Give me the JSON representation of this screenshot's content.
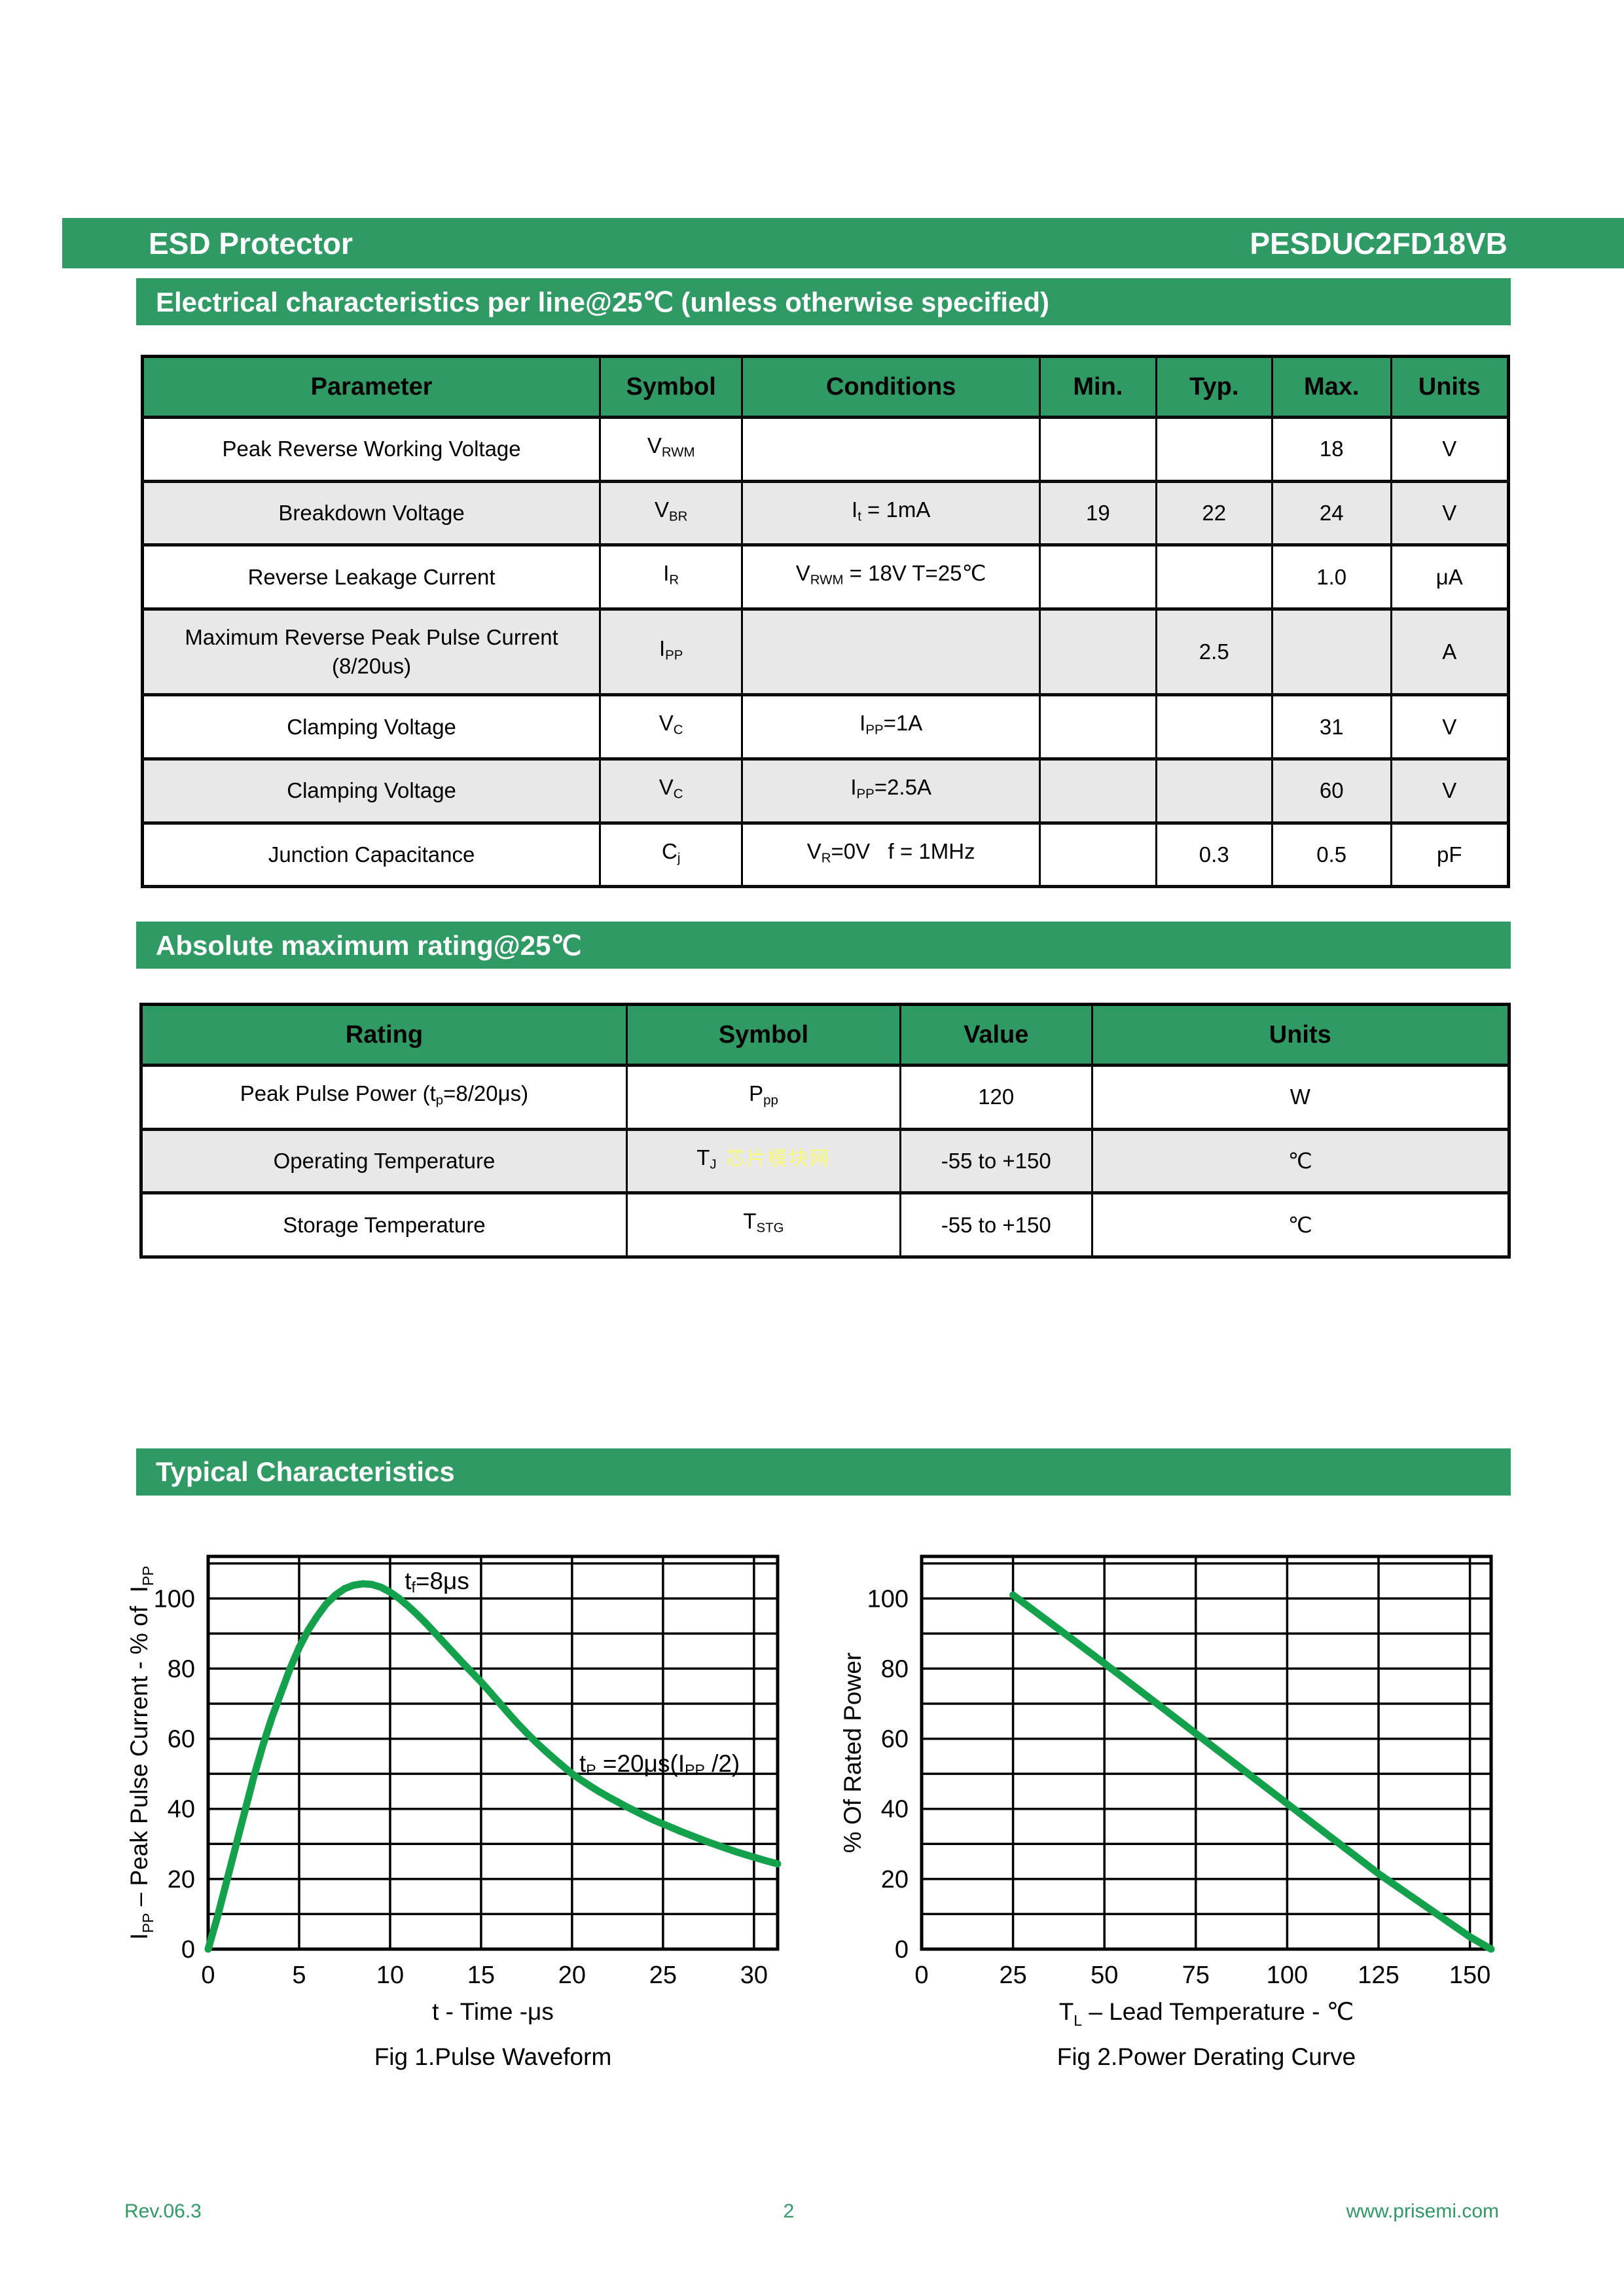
{
  "page": {
    "title_left": "ESD Protector",
    "title_right": "PESDUC2FD18VB"
  },
  "sections": {
    "electrical": "Electrical characteristics per line@25℃  (unless otherwise specified)",
    "absolute": "Absolute maximum rating@25℃",
    "typical": "Typical Characteristics"
  },
  "electrical_table": {
    "headers": [
      "Parameter",
      "Symbol",
      "Conditions",
      "Min.",
      "Typ.",
      "Max.",
      "Units"
    ],
    "col_widths": [
      33.5,
      10.4,
      21.8,
      8.5,
      8.5,
      8.7,
      8.6
    ],
    "rows": [
      {
        "shaded": false,
        "cells": [
          "Peak Reverse Working Voltage",
          [
            {
              "t": "V"
            },
            {
              "t": "RWM",
              "sub": true
            }
          ],
          "",
          "",
          "",
          "18",
          "V"
        ]
      },
      {
        "shaded": true,
        "cells": [
          "Breakdown Voltage",
          [
            {
              "t": "V"
            },
            {
              "t": "BR",
              "sub": true
            }
          ],
          [
            {
              "t": "I"
            },
            {
              "t": "t",
              "sub": true
            },
            {
              "t": " = 1mA"
            }
          ],
          "19",
          "22",
          "24",
          "V"
        ]
      },
      {
        "shaded": false,
        "cells": [
          "Reverse Leakage Current",
          [
            {
              "t": "I"
            },
            {
              "t": "R",
              "sub": true
            }
          ],
          [
            {
              "t": "V"
            },
            {
              "t": "RWM",
              "sub": true
            },
            {
              "t": " = 18V T=25℃"
            }
          ],
          "",
          "",
          "1.0",
          "μA"
        ]
      },
      {
        "shaded": true,
        "cells": [
          "Maximum Reverse Peak Pulse Current (8/20us)",
          [
            {
              "t": "I"
            },
            {
              "t": "PP",
              "sub": true
            }
          ],
          "",
          "",
          "2.5",
          "",
          "A"
        ]
      },
      {
        "shaded": false,
        "cells": [
          "Clamping Voltage",
          [
            {
              "t": "V"
            },
            {
              "t": "C",
              "sub": true
            }
          ],
          [
            {
              "t": "I"
            },
            {
              "t": "PP",
              "sub": true
            },
            {
              "t": "=1A"
            }
          ],
          "",
          "",
          "31",
          "V"
        ]
      },
      {
        "shaded": true,
        "cells": [
          "Clamping Voltage",
          [
            {
              "t": "V"
            },
            {
              "t": "C",
              "sub": true
            }
          ],
          [
            {
              "t": "I"
            },
            {
              "t": "PP",
              "sub": true
            },
            {
              "t": "=2.5A"
            }
          ],
          "",
          "",
          "60",
          "V"
        ]
      },
      {
        "shaded": false,
        "cells": [
          "Junction Capacitance",
          [
            {
              "t": "C"
            },
            {
              "t": "j",
              "sub": true
            }
          ],
          [
            {
              "t": "V"
            },
            {
              "t": "R",
              "sub": true
            },
            {
              "t": "=0V   f = 1MHz"
            }
          ],
          "",
          "0.3",
          "0.5",
          "pF"
        ]
      }
    ]
  },
  "absolute_table": {
    "headers": [
      "Rating",
      "Symbol",
      "Value",
      "Units"
    ],
    "col_widths": [
      35.5,
      20.0,
      14.0,
      30.5
    ],
    "rows": [
      {
        "shaded": false,
        "cells": [
          [
            {
              "t": "Peak Pulse Power (t"
            },
            {
              "t": "p",
              "sub": true
            },
            {
              "t": "=8/20μs)"
            }
          ],
          [
            {
              "t": "P"
            },
            {
              "t": "pp",
              "sub": true
            }
          ],
          "120",
          "W"
        ]
      },
      {
        "shaded": true,
        "watermark": "芯片模块网",
        "cells": [
          "Operating Temperature",
          [
            {
              "t": "T"
            },
            {
              "t": "J",
              "sub": true
            }
          ],
          "-55 to +150",
          "℃"
        ]
      },
      {
        "shaded": false,
        "cells": [
          "Storage Temperature",
          [
            {
              "t": "T"
            },
            {
              "t": "STG",
              "sub": true
            }
          ],
          "-55 to +150",
          "℃"
        ]
      }
    ]
  },
  "chart_data": [
    {
      "type": "line",
      "title": "Fig 1.Pulse Waveform",
      "xlabel_segments": [
        {
          "t": "t - Time -μs"
        }
      ],
      "ylabel_segments": [
        {
          "t": "I"
        },
        {
          "t": "PP",
          "sub": true
        },
        {
          "t": " – Peak Pulse Current - % of  I"
        },
        {
          "t": "PP",
          "sub": true
        }
      ],
      "xlim": [
        0,
        31.3
      ],
      "ylim": [
        0,
        112
      ],
      "xticks": [
        0,
        5,
        10,
        15,
        20,
        25,
        30
      ],
      "yticks": [
        0,
        20,
        40,
        60,
        80,
        100
      ],
      "xgrid_step": 5,
      "ygrid_step": 10,
      "grid": true,
      "legend": "none",
      "series": [
        {
          "name": "pulse-current",
          "points": [
            [
              0,
              0
            ],
            [
              0.5,
              9
            ],
            [
              1,
              19
            ],
            [
              1.5,
              29
            ],
            [
              2,
              39
            ],
            [
              2.5,
              49
            ],
            [
              3,
              58
            ],
            [
              3.5,
              66
            ],
            [
              4,
              73
            ],
            [
              4.5,
              80
            ],
            [
              5,
              86
            ],
            [
              5.5,
              91
            ],
            [
              6,
              95
            ],
            [
              6.5,
              98.5
            ],
            [
              7,
              101
            ],
            [
              7.5,
              102.8
            ],
            [
              8,
              103.8
            ],
            [
              8.5,
              104.2
            ],
            [
              9,
              104
            ],
            [
              9.5,
              103.2
            ],
            [
              10,
              101.8
            ],
            [
              10.5,
              100
            ],
            [
              11,
              97.8
            ],
            [
              11.5,
              95.4
            ],
            [
              12,
              92.8
            ],
            [
              12.5,
              90
            ],
            [
              13,
              87.2
            ],
            [
              13.5,
              84.4
            ],
            [
              14,
              81.6
            ],
            [
              14.5,
              78.9
            ],
            [
              15,
              76.2
            ],
            [
              15.5,
              73.3
            ],
            [
              16,
              70.3
            ],
            [
              16.5,
              67.3
            ],
            [
              17,
              64.4
            ],
            [
              17.5,
              61.7
            ],
            [
              18,
              59.1
            ],
            [
              18.5,
              56.7
            ],
            [
              19,
              54.4
            ],
            [
              19.5,
              52.2
            ],
            [
              20,
              50
            ],
            [
              20.5,
              48.2
            ],
            [
              21,
              46.5
            ],
            [
              21.5,
              44.9
            ],
            [
              22,
              43.4
            ],
            [
              22.5,
              42
            ],
            [
              23,
              40.6
            ],
            [
              23.5,
              39.3
            ],
            [
              24,
              38
            ],
            [
              24.5,
              36.8
            ],
            [
              25,
              35.7
            ],
            [
              25.5,
              34.6
            ],
            [
              26,
              33.5
            ],
            [
              26.5,
              32.5
            ],
            [
              27,
              31.5
            ],
            [
              27.5,
              30.5
            ],
            [
              28,
              29.6
            ],
            [
              28.5,
              28.7
            ],
            [
              29,
              27.8
            ],
            [
              29.5,
              27
            ],
            [
              30,
              26.2
            ],
            [
              30.6,
              25.3
            ],
            [
              31.3,
              24.3
            ]
          ]
        }
      ],
      "annotations": [
        {
          "x": 10.8,
          "y": 104.5,
          "segments": [
            {
              "t": "t"
            },
            {
              "t": "f",
              "sub": true
            },
            {
              "t": "=8μs"
            }
          ]
        },
        {
          "x": 20.4,
          "y": 52.5,
          "segments": [
            {
              "t": "t"
            },
            {
              "t": "P",
              "sub": true
            },
            {
              "t": " =20μs(I"
            },
            {
              "t": "PP",
              "sub": true
            },
            {
              "t": " /2)"
            }
          ]
        }
      ]
    },
    {
      "type": "line",
      "title": "Fig 2.Power Derating Curve",
      "xlabel_segments": [
        {
          "t": "T"
        },
        {
          "t": "L",
          "sub": true
        },
        {
          "t": " – Lead Temperature - ℃"
        }
      ],
      "ylabel_segments": [
        {
          "t": "% Of Rated Power"
        }
      ],
      "xlim": [
        0,
        155.8
      ],
      "ylim": [
        0,
        112
      ],
      "xticks": [
        0,
        25,
        50,
        75,
        100,
        125,
        150
      ],
      "yticks": [
        0,
        20,
        40,
        60,
        80,
        100
      ],
      "xgrid_step": 25,
      "ygrid_step": 10,
      "grid": true,
      "legend": "none",
      "series": [
        {
          "name": "rated-power",
          "points": [
            [
              25,
              101
            ],
            [
              50,
              81.5
            ],
            [
              75,
              61.5
            ],
            [
              100,
              41.5
            ],
            [
              125,
              21.5
            ],
            [
              150,
              3.5
            ],
            [
              155.8,
              0
            ]
          ]
        }
      ],
      "annotations": []
    }
  ],
  "footer": {
    "rev": "Rev.06.3",
    "page": "2",
    "site": "www.prisemi.com"
  },
  "colors": {
    "accent_green": "#2f9a63",
    "curve_green": "#13a24b",
    "row_shade": "#e8e8e8",
    "watermark_yellow": "#f8f87a",
    "footer_green": "#2f9a63"
  }
}
